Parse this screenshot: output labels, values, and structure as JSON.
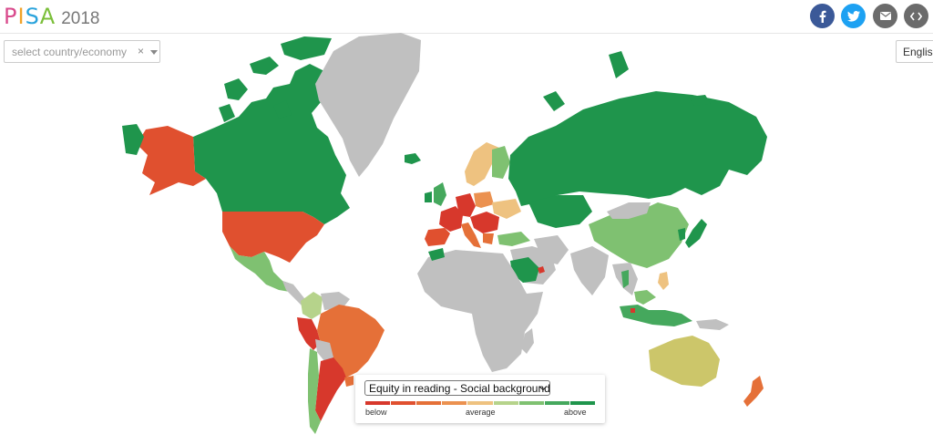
{
  "header": {
    "logo_letters": [
      "P",
      "I",
      "S",
      "A"
    ],
    "logo_colors": [
      "#d94a8c",
      "#f0a32a",
      "#2aa3dc",
      "#7bbf3a"
    ],
    "year": "2018",
    "share": [
      {
        "name": "facebook-icon",
        "color": "#3b5998"
      },
      {
        "name": "twitter-icon",
        "color": "#1da1f2"
      },
      {
        "name": "email-icon",
        "color": "#6b6b6b"
      },
      {
        "name": "embed-icon",
        "color": "#6b6b6b"
      }
    ]
  },
  "country_select": {
    "placeholder": "select country/economy",
    "clear": "×"
  },
  "language": {
    "label": "English"
  },
  "map": {
    "background": "#ffffff",
    "no_data_color": "#c0c0c0",
    "regions": [
      {
        "name": "Canada",
        "category": "above"
      },
      {
        "name": "Alaska",
        "category": "below"
      },
      {
        "name": "United States",
        "category": "below"
      },
      {
        "name": "Greenland",
        "category": "no data"
      },
      {
        "name": "Mexico",
        "category": "above"
      },
      {
        "name": "Colombia",
        "category": "above"
      },
      {
        "name": "Peru",
        "category": "below"
      },
      {
        "name": "Brazil",
        "category": "below"
      },
      {
        "name": "Argentina",
        "category": "below"
      },
      {
        "name": "Chile",
        "category": "above"
      },
      {
        "name": "Russia",
        "category": "above"
      },
      {
        "name": "China",
        "category": "above"
      },
      {
        "name": "Australia",
        "category": "average"
      },
      {
        "name": "New Zealand",
        "category": "below"
      },
      {
        "name": "Africa",
        "category": "no data"
      }
    ]
  },
  "legend": {
    "indicator": "Equity in reading - Social background",
    "colors": [
      "#d7382c",
      "#e0502f",
      "#e57038",
      "#eb9150",
      "#eec280",
      "#b6d38b",
      "#7fc171",
      "#45a85d",
      "#1f954c"
    ],
    "labels": {
      "low": "below",
      "mid": "average",
      "high": "above"
    }
  }
}
